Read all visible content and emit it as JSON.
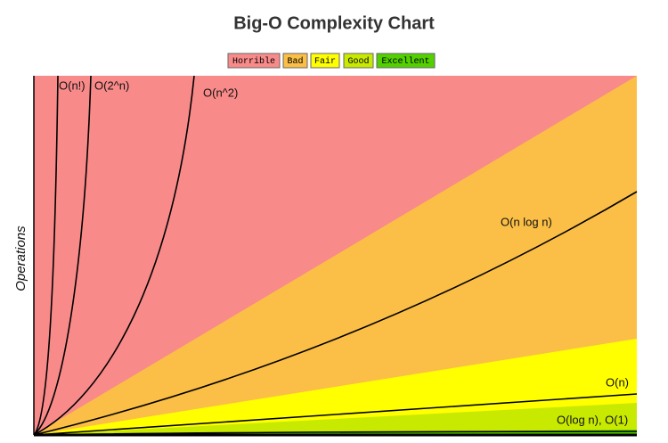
{
  "title": "Big-O Complexity Chart",
  "legend": [
    "Horrible",
    "Bad",
    "Fair",
    "Good",
    "Excellent"
  ],
  "y_axis_label": "Operations",
  "curve_labels": [
    "O(n!)",
    "O(2^n)",
    "O(n^2)",
    "O(n log n)",
    "O(n)",
    "O(log n), O(1)"
  ]
}
